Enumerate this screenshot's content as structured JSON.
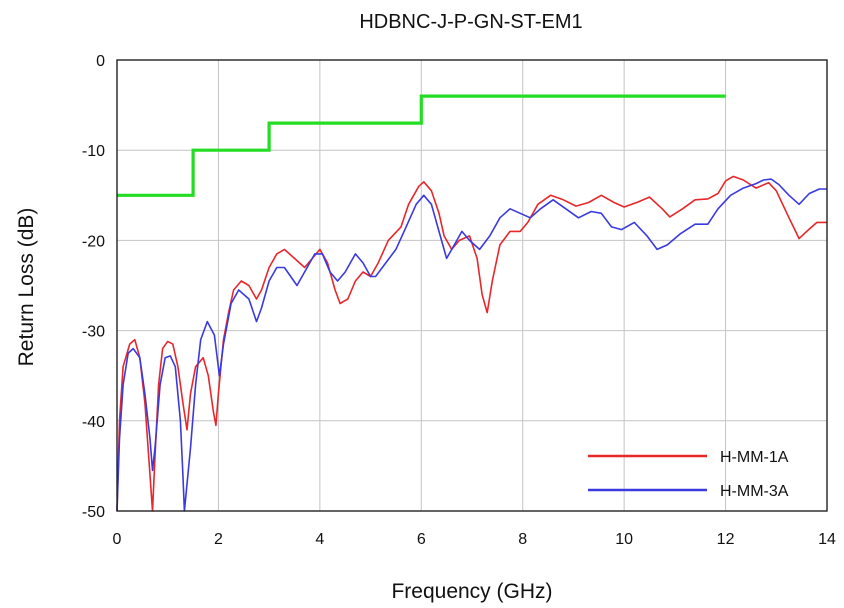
{
  "chart_data": {
    "type": "line",
    "title": "HDBNC-J-P-GN-ST-EM1",
    "xlabel": "Frequency (GHz)",
    "ylabel": "Return Loss (dB)",
    "xlim": [
      0,
      14
    ],
    "ylim": [
      -50,
      0
    ],
    "xticks": [
      0,
      2,
      4,
      6,
      8,
      10,
      12,
      14
    ],
    "yticks": [
      0,
      -10,
      -20,
      -30,
      -40,
      -50
    ],
    "grid": true,
    "legend_position": "bottom-right",
    "series": [
      {
        "name": "H-MM-1A",
        "color": "#e8272b",
        "points": [
          [
            0.0,
            -50
          ],
          [
            0.05,
            -40
          ],
          [
            0.12,
            -34
          ],
          [
            0.25,
            -31.5
          ],
          [
            0.35,
            -31
          ],
          [
            0.45,
            -33
          ],
          [
            0.55,
            -38
          ],
          [
            0.65,
            -46
          ],
          [
            0.7,
            -50
          ],
          [
            0.75,
            -44
          ],
          [
            0.82,
            -36
          ],
          [
            0.9,
            -32
          ],
          [
            1.0,
            -31.2
          ],
          [
            1.1,
            -31.5
          ],
          [
            1.2,
            -34
          ],
          [
            1.3,
            -38
          ],
          [
            1.38,
            -41
          ],
          [
            1.45,
            -37
          ],
          [
            1.55,
            -34
          ],
          [
            1.7,
            -33
          ],
          [
            1.8,
            -35
          ],
          [
            1.9,
            -39
          ],
          [
            1.95,
            -40.5
          ],
          [
            2.0,
            -37
          ],
          [
            2.1,
            -31
          ],
          [
            2.2,
            -28
          ],
          [
            2.3,
            -25.5
          ],
          [
            2.45,
            -24.5
          ],
          [
            2.6,
            -25
          ],
          [
            2.75,
            -26.5
          ],
          [
            2.85,
            -25.5
          ],
          [
            3.0,
            -23
          ],
          [
            3.15,
            -21.5
          ],
          [
            3.3,
            -21
          ],
          [
            3.5,
            -22
          ],
          [
            3.7,
            -23
          ],
          [
            3.85,
            -22
          ],
          [
            4.0,
            -21
          ],
          [
            4.15,
            -22.5
          ],
          [
            4.3,
            -25.5
          ],
          [
            4.4,
            -27
          ],
          [
            4.55,
            -26.5
          ],
          [
            4.7,
            -24.5
          ],
          [
            4.85,
            -23.5
          ],
          [
            5.0,
            -24
          ],
          [
            5.15,
            -22.5
          ],
          [
            5.35,
            -20
          ],
          [
            5.6,
            -18.5
          ],
          [
            5.75,
            -16
          ],
          [
            5.95,
            -14
          ],
          [
            6.05,
            -13.5
          ],
          [
            6.2,
            -14.5
          ],
          [
            6.35,
            -17
          ],
          [
            6.45,
            -19.5
          ],
          [
            6.6,
            -21
          ],
          [
            6.75,
            -20
          ],
          [
            6.95,
            -19.5
          ],
          [
            7.1,
            -22
          ],
          [
            7.2,
            -26
          ],
          [
            7.3,
            -28
          ],
          [
            7.4,
            -24.5
          ],
          [
            7.55,
            -20.5
          ],
          [
            7.75,
            -19
          ],
          [
            7.95,
            -19
          ],
          [
            8.1,
            -18
          ],
          [
            8.3,
            -16
          ],
          [
            8.55,
            -15
          ],
          [
            8.8,
            -15.5
          ],
          [
            9.05,
            -16.2
          ],
          [
            9.3,
            -15.8
          ],
          [
            9.55,
            -15
          ],
          [
            9.8,
            -15.8
          ],
          [
            10.0,
            -16.3
          ],
          [
            10.25,
            -15.8
          ],
          [
            10.5,
            -15.2
          ],
          [
            10.75,
            -16.5
          ],
          [
            10.9,
            -17.4
          ],
          [
            11.15,
            -16.5
          ],
          [
            11.4,
            -15.5
          ],
          [
            11.65,
            -15.4
          ],
          [
            11.85,
            -14.8
          ],
          [
            12.0,
            -13.4
          ],
          [
            12.15,
            -12.9
          ],
          [
            12.35,
            -13.3
          ],
          [
            12.6,
            -14.2
          ],
          [
            12.85,
            -13.6
          ],
          [
            13.0,
            -14.5
          ],
          [
            13.25,
            -17.5
          ],
          [
            13.45,
            -19.8
          ],
          [
            13.6,
            -19
          ],
          [
            13.8,
            -18
          ],
          [
            14.0,
            -18
          ]
        ]
      },
      {
        "name": "H-MM-3A",
        "color": "#3a3ae0",
        "points": [
          [
            0.0,
            -50
          ],
          [
            0.05,
            -42
          ],
          [
            0.12,
            -36
          ],
          [
            0.22,
            -32.5
          ],
          [
            0.32,
            -32
          ],
          [
            0.45,
            -33
          ],
          [
            0.55,
            -37
          ],
          [
            0.65,
            -42
          ],
          [
            0.7,
            -45.5
          ],
          [
            0.75,
            -43
          ],
          [
            0.85,
            -36
          ],
          [
            0.95,
            -33
          ],
          [
            1.05,
            -32.8
          ],
          [
            1.15,
            -34
          ],
          [
            1.25,
            -40
          ],
          [
            1.3,
            -46
          ],
          [
            1.33,
            -50
          ],
          [
            1.45,
            -43
          ],
          [
            1.55,
            -36
          ],
          [
            1.65,
            -31
          ],
          [
            1.78,
            -29
          ],
          [
            1.92,
            -30.5
          ],
          [
            2.02,
            -35
          ],
          [
            2.1,
            -31.5
          ],
          [
            2.25,
            -27
          ],
          [
            2.4,
            -25.5
          ],
          [
            2.6,
            -26.5
          ],
          [
            2.75,
            -29
          ],
          [
            2.85,
            -27.5
          ],
          [
            3.0,
            -24.5
          ],
          [
            3.15,
            -23
          ],
          [
            3.3,
            -23
          ],
          [
            3.55,
            -25
          ],
          [
            3.7,
            -23.5
          ],
          [
            3.9,
            -21.5
          ],
          [
            4.05,
            -21.5
          ],
          [
            4.2,
            -23.5
          ],
          [
            4.35,
            -24.5
          ],
          [
            4.5,
            -23.5
          ],
          [
            4.7,
            -21.5
          ],
          [
            4.85,
            -22.5
          ],
          [
            5.0,
            -24
          ],
          [
            5.1,
            -24
          ],
          [
            5.3,
            -22.5
          ],
          [
            5.5,
            -21
          ],
          [
            5.7,
            -18.5
          ],
          [
            5.9,
            -16
          ],
          [
            6.05,
            -15
          ],
          [
            6.2,
            -16
          ],
          [
            6.35,
            -19
          ],
          [
            6.5,
            -22
          ],
          [
            6.65,
            -20.5
          ],
          [
            6.8,
            -19
          ],
          [
            6.95,
            -20
          ],
          [
            7.15,
            -21
          ],
          [
            7.35,
            -19.5
          ],
          [
            7.55,
            -17.5
          ],
          [
            7.75,
            -16.5
          ],
          [
            7.95,
            -17
          ],
          [
            8.15,
            -17.5
          ],
          [
            8.35,
            -16.5
          ],
          [
            8.6,
            -15.5
          ],
          [
            8.85,
            -16.5
          ],
          [
            9.1,
            -17.5
          ],
          [
            9.35,
            -16.8
          ],
          [
            9.55,
            -17
          ],
          [
            9.75,
            -18.5
          ],
          [
            9.95,
            -18.8
          ],
          [
            10.2,
            -18
          ],
          [
            10.45,
            -19.5
          ],
          [
            10.65,
            -21
          ],
          [
            10.85,
            -20.5
          ],
          [
            11.1,
            -19.3
          ],
          [
            11.4,
            -18.2
          ],
          [
            11.65,
            -18.2
          ],
          [
            11.85,
            -16.5
          ],
          [
            12.1,
            -15
          ],
          [
            12.35,
            -14.2
          ],
          [
            12.6,
            -13.7
          ],
          [
            12.75,
            -13.3
          ],
          [
            12.9,
            -13.2
          ],
          [
            13.05,
            -13.8
          ],
          [
            13.25,
            -15
          ],
          [
            13.45,
            -16
          ],
          [
            13.65,
            -14.8
          ],
          [
            13.85,
            -14.3
          ],
          [
            14.0,
            -14.3
          ]
        ]
      },
      {
        "color": "#22dd22",
        "points": [
          [
            0.0,
            -15
          ],
          [
            1.5,
            -15
          ],
          [
            1.5,
            -10
          ],
          [
            3.0,
            -10
          ],
          [
            3.0,
            -7
          ],
          [
            6.0,
            -7
          ],
          [
            6.0,
            -4
          ],
          [
            12.0,
            -4
          ]
        ]
      }
    ]
  }
}
